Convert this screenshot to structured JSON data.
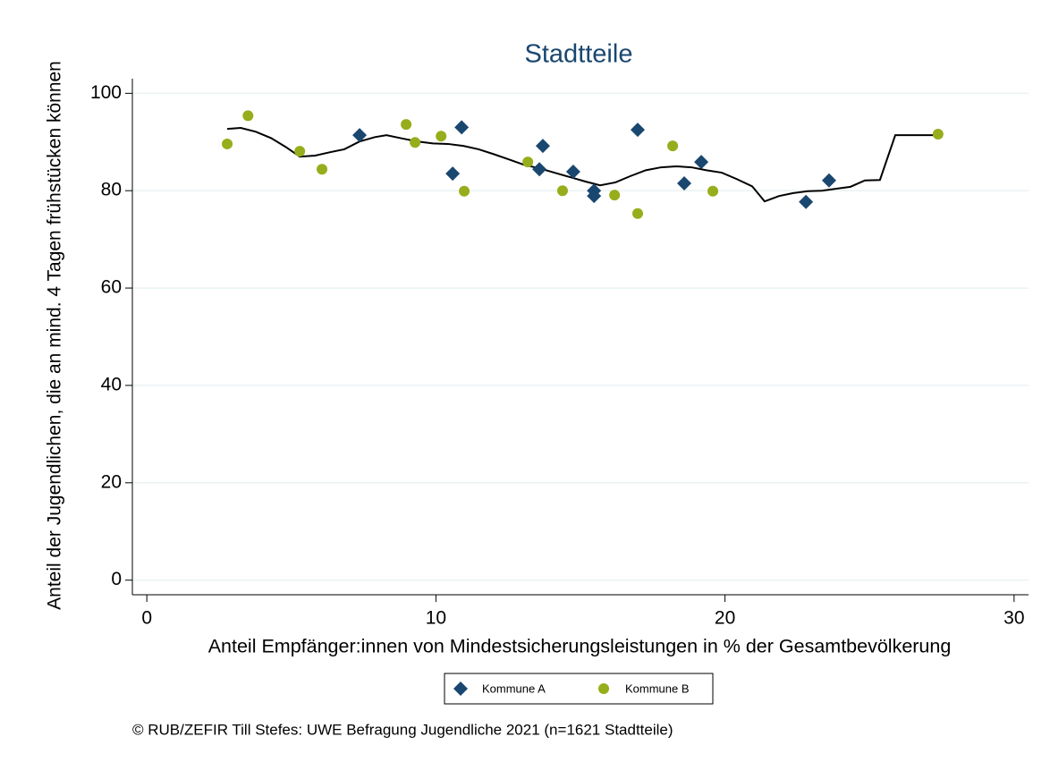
{
  "chart_data": {
    "type": "scatter",
    "title": "Stadtteile",
    "xlabel": "Anteil Empfänger:innen von Mindestsicherungsleistungen in % der Gesamtbevölkerung",
    "ylabel": "Anteil der Jugendlichen, die an mind. 4 Tagen frühstücken können",
    "caption": "© RUB/ZEFIR Till Stefes: UWE Befragung Jugendliche 2021 (n=1621 Stadtteile)",
    "xlim": [
      -0.5,
      30.5
    ],
    "xticks": [
      0,
      10,
      20,
      30
    ],
    "ylim": [
      -3,
      103
    ],
    "yticks": [
      0,
      20,
      40,
      60,
      80,
      100
    ],
    "grid": true,
    "series": [
      {
        "name": "Kommune A",
        "color": "#1a476f",
        "marker": "diamond",
        "x": [
          7.36,
          10.89,
          10.58,
          13.7,
          13.58,
          14.75,
          15.47,
          15.47,
          16.98,
          18.59,
          19.18,
          22.8,
          23.6
        ],
        "values": [
          91.4,
          93.0,
          83.5,
          89.2,
          84.4,
          83.9,
          80.0,
          78.9,
          92.5,
          81.5,
          85.9,
          77.7,
          82.1
        ]
      },
      {
        "name": "Kommune B",
        "color": "#97ad1b",
        "marker": "circle",
        "x": [
          2.78,
          3.5,
          5.29,
          6.06,
          8.97,
          9.28,
          10.18,
          10.98,
          13.18,
          14.38,
          16.18,
          16.98,
          18.19,
          19.58,
          27.37
        ],
        "values": [
          89.6,
          95.4,
          88.1,
          84.4,
          93.6,
          89.9,
          91.2,
          79.9,
          85.9,
          80.0,
          79.1,
          75.3,
          89.2,
          79.9,
          91.6
        ]
      }
    ],
    "fit": {
      "color": "#000000",
      "x": [
        2.78,
        3.25,
        3.77,
        4.3,
        4.8,
        5.29,
        5.82,
        6.34,
        6.83,
        7.36,
        7.89,
        8.29,
        8.85,
        9.37,
        9.9,
        10.42,
        10.95,
        11.48,
        12.0,
        12.53,
        13.05,
        13.58,
        14.1,
        14.63,
        15.16,
        15.68,
        16.21,
        16.73,
        17.26,
        17.79,
        18.31,
        18.84,
        19.36,
        19.89,
        20.4,
        20.94,
        21.37,
        21.87,
        22.36,
        22.86,
        23.35,
        23.85,
        24.34,
        24.84,
        25.36,
        25.89,
        27.37
      ],
      "values": [
        92.7,
        92.9,
        92.1,
        90.8,
        89.0,
        87.0,
        87.2,
        87.9,
        88.5,
        90.1,
        91.0,
        91.4,
        90.7,
        90.1,
        89.7,
        89.6,
        89.2,
        88.5,
        87.5,
        86.4,
        85.3,
        84.6,
        83.7,
        82.8,
        81.9,
        81.1,
        81.7,
        83.0,
        84.2,
        84.8,
        85.0,
        84.8,
        84.2,
        83.7,
        82.4,
        80.9,
        77.8,
        78.9,
        79.5,
        79.9,
        80.0,
        80.4,
        80.8,
        82.1,
        82.2,
        91.4,
        91.4
      ]
    }
  }
}
